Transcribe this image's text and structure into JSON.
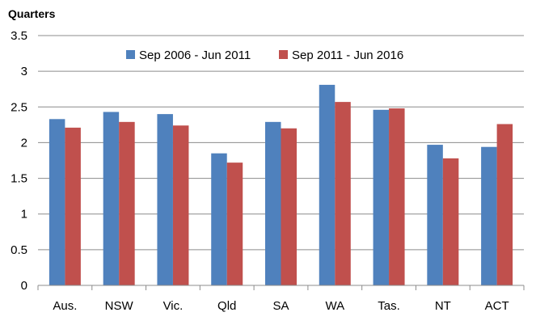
{
  "chart_data": {
    "type": "bar",
    "ylabel": "Quarters",
    "xlabel": "",
    "ylim": [
      0,
      3.5
    ],
    "yticks": [
      0,
      0.5,
      1,
      1.5,
      2,
      2.5,
      3,
      3.5
    ],
    "ytick_labels": [
      "0",
      "0.5",
      "1",
      "1.5",
      "2",
      "2.5",
      "3",
      "3.5"
    ],
    "grid": true,
    "legend_position": "top-center",
    "categories": [
      "Aus.",
      "NSW",
      "Vic.",
      "Qld",
      "SA",
      "WA",
      "Tas.",
      "NT",
      "ACT"
    ],
    "series": [
      {
        "name": "Sep 2006 - Jun 2011",
        "color": "#4f81bd",
        "values": [
          2.33,
          2.43,
          2.4,
          1.85,
          2.29,
          2.81,
          2.46,
          1.97,
          1.94
        ]
      },
      {
        "name": "Sep 2011 - Jun 2016",
        "color": "#c0504d",
        "values": [
          2.21,
          2.29,
          2.24,
          1.72,
          2.2,
          2.57,
          2.48,
          1.78,
          2.26
        ]
      }
    ]
  }
}
